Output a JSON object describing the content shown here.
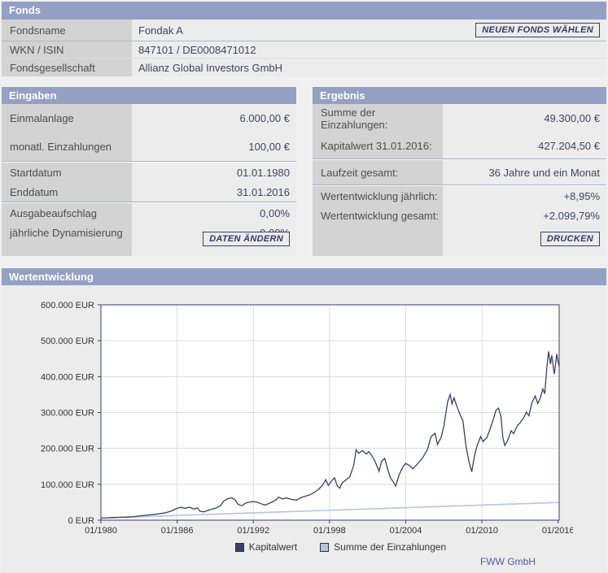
{
  "colors": {
    "header_bar": "#94A0C3",
    "label_column": "#D3D3D3",
    "value_column": "#ECECEC",
    "page_background": "#F0F0F0",
    "accent_navy": "#3A4166",
    "series_kapitalwert": "#3A4166",
    "series_einzahlungen": "#B7C5DA",
    "attribution_blue": "#4D5CA3"
  },
  "fonds": {
    "title": "Fonds",
    "button": "NEUEN FONDS WÄHLEN",
    "rows": [
      {
        "label": "Fondsname",
        "value": "Fondak A"
      },
      {
        "label": "WKN / ISIN",
        "value": "847101 / DE0008471012"
      },
      {
        "label": "Fondsgesellschaft",
        "value": "Allianz Global Investors GmbH"
      }
    ]
  },
  "eingaben": {
    "title": "Eingaben",
    "button": "DATEN ÄNDERN",
    "groups": [
      [
        {
          "label": "Einmalanlage",
          "value": "6.000,00 €"
        },
        {
          "label": "monatl. Einzahlungen",
          "value": "100,00 €"
        }
      ],
      [
        {
          "label": "Startdatum",
          "value": "01.01.1980"
        },
        {
          "label": "Enddatum",
          "value": "31.01.2016"
        }
      ],
      [
        {
          "label": "Ausgabeaufschlag",
          "value": "0,00%"
        },
        {
          "label": "jährliche Dynamisierung",
          "value": "0,00%"
        }
      ]
    ]
  },
  "ergebnis": {
    "title": "Ergebnis",
    "button": "DRUCKEN",
    "groups": [
      [
        {
          "label": "Summe der Einzahlungen:",
          "value": "49.300,00 €"
        },
        {
          "label": "Kapitalwert 31.01.2016:",
          "value": "427.204,50 €"
        }
      ],
      [
        {
          "label": "Laufzeit gesamt:",
          "value": "36 Jahre und ein Monat"
        }
      ],
      [
        {
          "label": "Wertentwicklung jährlich:",
          "value": "+8,95%"
        },
        {
          "label": "Wertentwicklung gesamt:",
          "value": "+2.099,79%"
        }
      ]
    ]
  },
  "chart": {
    "title": "Wertentwicklung",
    "attribution": "FWW GmbH"
  },
  "chart_data": {
    "type": "line",
    "title": "Wertentwicklung",
    "grid": true,
    "legend_position": "bottom-center",
    "x_range_years": [
      1980,
      2016.083
    ],
    "y_range_eur": [
      0,
      600000
    ],
    "x_tick_years": [
      1980,
      1986,
      1992,
      1998,
      2004,
      2010,
      2016
    ],
    "x_tick_labels": [
      "01/1980",
      "01/1986",
      "01/1992",
      "01/1998",
      "01/2004",
      "01/2010",
      "01/2016"
    ],
    "y_tick_values": [
      0,
      100000,
      200000,
      300000,
      400000,
      500000,
      600000
    ],
    "y_tick_labels": [
      "0 EUR",
      "100.000 EUR",
      "200.000 EUR",
      "300.000 EUR",
      "400.000 EUR",
      "500.000 EUR",
      "600.000 EUR"
    ],
    "series": [
      {
        "name": "Summe der Einzahlungen",
        "color": "#B7C5DA",
        "points_year_eur": [
          [
            1980.0,
            6000
          ],
          [
            2016.083,
            49300
          ]
        ]
      },
      {
        "name": "Kapitalwert",
        "color": "#3A4166",
        "points_year_eur": [
          [
            1980.0,
            6000
          ],
          [
            1980.5,
            6600
          ],
          [
            1981.0,
            7400
          ],
          [
            1981.5,
            8000
          ],
          [
            1982.0,
            8600
          ],
          [
            1982.5,
            9600
          ],
          [
            1983.0,
            11500
          ],
          [
            1983.5,
            13500
          ],
          [
            1984.0,
            15500
          ],
          [
            1984.5,
            17500
          ],
          [
            1985.0,
            20000
          ],
          [
            1985.5,
            25000
          ],
          [
            1986.0,
            33000
          ],
          [
            1986.3,
            36000
          ],
          [
            1986.6,
            33000
          ],
          [
            1987.0,
            36000
          ],
          [
            1987.3,
            31000
          ],
          [
            1987.6,
            34000
          ],
          [
            1987.8,
            25000
          ],
          [
            1988.1,
            23000
          ],
          [
            1988.5,
            28000
          ],
          [
            1989.0,
            33000
          ],
          [
            1989.4,
            40000
          ],
          [
            1989.7,
            54000
          ],
          [
            1990.0,
            60000
          ],
          [
            1990.3,
            62000
          ],
          [
            1990.55,
            57000
          ],
          [
            1990.8,
            44000
          ],
          [
            1991.1,
            40000
          ],
          [
            1991.4,
            48000
          ],
          [
            1991.7,
            50000
          ],
          [
            1992.0,
            52000
          ],
          [
            1992.3,
            50000
          ],
          [
            1992.6,
            46000
          ],
          [
            1992.9,
            42000
          ],
          [
            1993.2,
            46000
          ],
          [
            1993.5,
            51000
          ],
          [
            1993.8,
            57000
          ],
          [
            1994.0,
            64000
          ],
          [
            1994.3,
            59000
          ],
          [
            1994.6,
            62000
          ],
          [
            1995.0,
            58000
          ],
          [
            1995.4,
            56000
          ],
          [
            1995.7,
            62000
          ],
          [
            1996.0,
            66000
          ],
          [
            1996.4,
            70000
          ],
          [
            1996.8,
            77000
          ],
          [
            1997.2,
            88000
          ],
          [
            1997.5,
            100000
          ],
          [
            1997.7,
            113000
          ],
          [
            1997.9,
            97000
          ],
          [
            1998.2,
            111000
          ],
          [
            1998.4,
            118000
          ],
          [
            1998.6,
            96000
          ],
          [
            1998.8,
            89000
          ],
          [
            1999.0,
            104000
          ],
          [
            1999.3,
            112000
          ],
          [
            1999.6,
            121000
          ],
          [
            1999.9,
            152000
          ],
          [
            2000.1,
            196000
          ],
          [
            2000.3,
            186000
          ],
          [
            2000.6,
            194000
          ],
          [
            2000.9,
            184000
          ],
          [
            2001.1,
            191000
          ],
          [
            2001.4,
            176000
          ],
          [
            2001.6,
            162000
          ],
          [
            2001.75,
            150000
          ],
          [
            2001.9,
            136000
          ],
          [
            2002.1,
            164000
          ],
          [
            2002.35,
            172000
          ],
          [
            2002.6,
            140000
          ],
          [
            2002.8,
            118000
          ],
          [
            2003.0,
            108000
          ],
          [
            2003.2,
            95000
          ],
          [
            2003.5,
            128000
          ],
          [
            2003.8,
            150000
          ],
          [
            2004.0,
            158000
          ],
          [
            2004.3,
            152000
          ],
          [
            2004.55,
            143000
          ],
          [
            2004.8,
            152000
          ],
          [
            2005.0,
            160000
          ],
          [
            2005.3,
            172000
          ],
          [
            2005.7,
            196000
          ],
          [
            2006.0,
            233000
          ],
          [
            2006.3,
            242000
          ],
          [
            2006.5,
            211000
          ],
          [
            2006.8,
            232000
          ],
          [
            2007.0,
            262000
          ],
          [
            2007.3,
            330000
          ],
          [
            2007.5,
            350000
          ],
          [
            2007.65,
            324000
          ],
          [
            2007.8,
            341000
          ],
          [
            2008.0,
            320000
          ],
          [
            2008.3,
            292000
          ],
          [
            2008.5,
            278000
          ],
          [
            2008.75,
            205000
          ],
          [
            2009.0,
            160000
          ],
          [
            2009.2,
            135000
          ],
          [
            2009.4,
            176000
          ],
          [
            2009.6,
            205000
          ],
          [
            2009.9,
            233000
          ],
          [
            2010.1,
            219000
          ],
          [
            2010.4,
            231000
          ],
          [
            2010.6,
            249000
          ],
          [
            2010.9,
            281000
          ],
          [
            2011.1,
            306000
          ],
          [
            2011.3,
            312000
          ],
          [
            2011.5,
            289000
          ],
          [
            2011.65,
            230000
          ],
          [
            2011.8,
            208000
          ],
          [
            2012.0,
            220000
          ],
          [
            2012.3,
            249000
          ],
          [
            2012.5,
            241000
          ],
          [
            2012.8,
            264000
          ],
          [
            2013.0,
            271000
          ],
          [
            2013.3,
            286000
          ],
          [
            2013.5,
            301000
          ],
          [
            2013.7,
            291000
          ],
          [
            2013.95,
            328000
          ],
          [
            2014.2,
            346000
          ],
          [
            2014.4,
            325000
          ],
          [
            2014.6,
            341000
          ],
          [
            2014.8,
            366000
          ],
          [
            2014.95,
            352000
          ],
          [
            2015.1,
            421000
          ],
          [
            2015.25,
            470000
          ],
          [
            2015.4,
            435000
          ],
          [
            2015.5,
            459000
          ],
          [
            2015.7,
            407000
          ],
          [
            2015.9,
            463000
          ],
          [
            2016.0,
            441000
          ],
          [
            2016.083,
            427204
          ]
        ]
      }
    ]
  }
}
